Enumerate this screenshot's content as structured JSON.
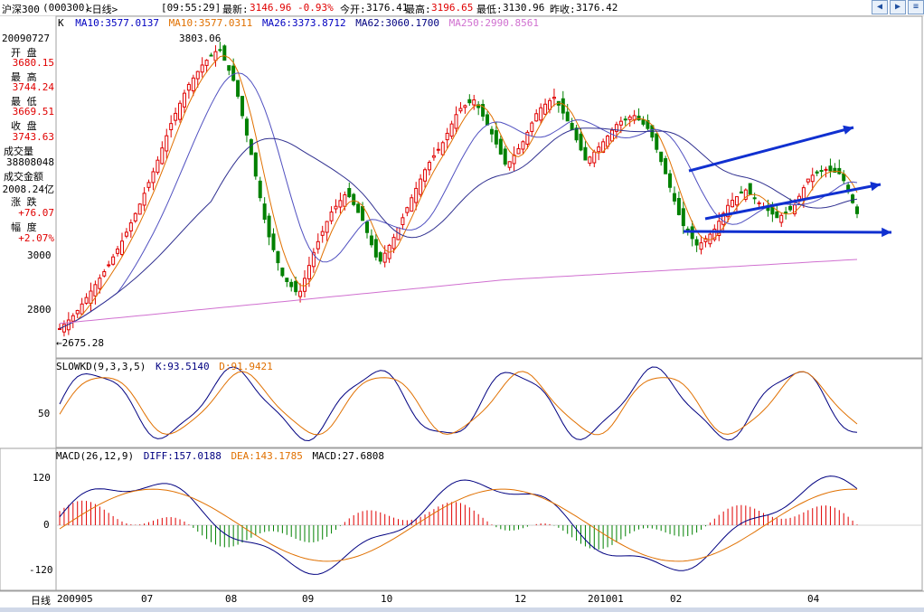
{
  "header": {
    "index_name": "沪深300",
    "code": "(000300)",
    "period": "<日线>",
    "time": "[09:55:29]",
    "latest_label": "最新:",
    "latest": "3146.96",
    "change_pct": "-0.93%",
    "open_label": "今开:",
    "open": "3176.41",
    "high_label": "最高:",
    "high": "3196.65",
    "low_label": "最低:",
    "low": "3130.96",
    "prev_close_label": "昨收:",
    "prev_close": "3176.42"
  },
  "ma_legend": {
    "k": "K",
    "ma10": "MA10:3577.0137",
    "ma10b": "MA10:3577.0311",
    "ma26": "MA26:3373.8712",
    "ma62": "MA62:3060.1700",
    "ma250": "MA250:2990.8561"
  },
  "info_panel": {
    "date": "20090727",
    "open_label": "开  盘",
    "open": "3680.15",
    "high_label": "最  高",
    "high": "3744.24",
    "low_label": "最  低",
    "low": "3669.51",
    "close_label": "收  盘",
    "close": "3743.63",
    "volume_label": "成交量",
    "volume": "38808048",
    "amount_label": "成交金额",
    "amount": "2008.24亿",
    "change_label": "涨  跌",
    "change": "+76.07",
    "amp_label": "幅  度",
    "amp": "+2.07%"
  },
  "price_axis": [
    "3000",
    "2800"
  ],
  "annotations": {
    "peak": "3803.06",
    "trough": "←2675.28"
  },
  "kd": {
    "title": "SLOWKD(9,3,3,5)",
    "k": "K:93.5140",
    "d": "D:91.9421",
    "axis": [
      "50"
    ]
  },
  "macd": {
    "title": "MACD(26,12,9)",
    "diff": "DIFF:157.0188",
    "dea": "DEA:143.1785",
    "macd": "MACD:27.6808",
    "axis": [
      "120",
      "0",
      "-120"
    ]
  },
  "x_axis": {
    "label": "日线",
    "ticks": [
      "200905",
      "07",
      "08",
      "09",
      "10",
      "12",
      "201001",
      "02",
      "04"
    ]
  },
  "colors": {
    "up": "#e00000",
    "down": "#008000",
    "ma10": "#e07000",
    "ma26": "#5050c0",
    "ma62": "#303090",
    "ma250": "#d070d0",
    "trendline": "#1030d0"
  },
  "chart_data": {
    "type": "candlestick",
    "title": "沪深300 日线",
    "ylim": [
      2600,
      3900
    ],
    "close_series": [
      2700,
      2760,
      2850,
      2940,
      3050,
      3180,
      3330,
      3500,
      3640,
      3730,
      3790,
      3650,
      3380,
      3080,
      2900,
      2830,
      3010,
      3150,
      3230,
      3120,
      2950,
      3060,
      3200,
      3330,
      3420,
      3550,
      3590,
      3470,
      3330,
      3420,
      3550,
      3600,
      3490,
      3350,
      3420,
      3500,
      3530,
      3470,
      3300,
      3110,
      3020,
      3080,
      3190,
      3240,
      3180,
      3130,
      3170,
      3290,
      3320,
      3300,
      3146.96
    ]
  }
}
